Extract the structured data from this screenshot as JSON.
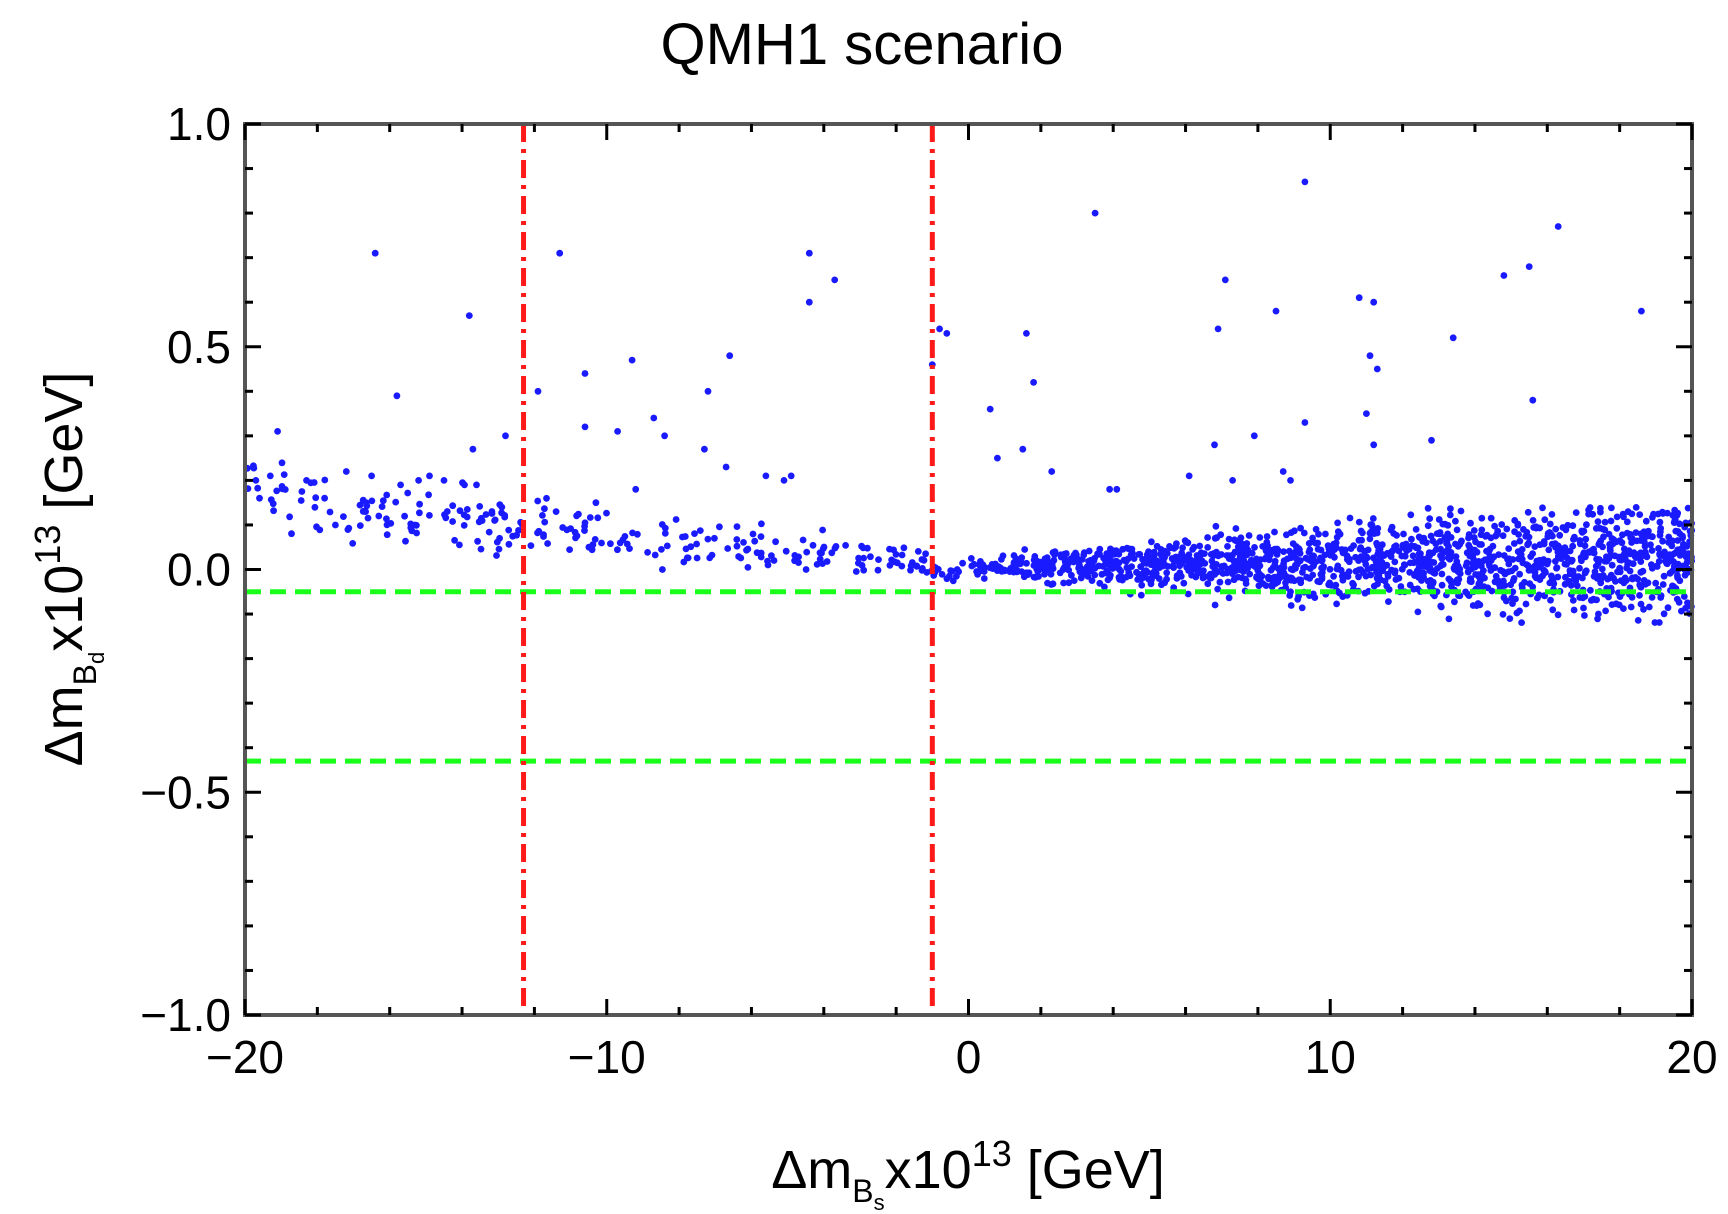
{
  "chart_data": {
    "type": "scatter",
    "title": "QMH1 scenario",
    "xlabel": {
      "prefix": "Δm",
      "subscript": "B",
      "subsubscript": "s",
      "mid": "x10",
      "superscript": "13",
      "suffix": " [GeV]"
    },
    "ylabel": {
      "prefix": "Δm",
      "subscript": "B",
      "subsubscript": "d",
      "mid": "x10",
      "superscript": "13",
      "suffix": " [GeV]"
    },
    "xlim": [
      -20,
      20
    ],
    "ylim": [
      -1.0,
      1.0
    ],
    "xticks": [
      -20,
      -10,
      0,
      10,
      20
    ],
    "xtick_labels": [
      "−20",
      "−10",
      "0",
      "10",
      "20"
    ],
    "yticks": [
      -1.0,
      -0.5,
      0.0,
      0.5,
      1.0
    ],
    "ytick_labels": [
      "−1.0",
      "−0.5",
      "0.0",
      "0.5",
      "1.0"
    ],
    "colors": {
      "points": "#1a1aff",
      "vlines": "#ff1a1a",
      "hlines": "#1aff1a",
      "frame": "#555555"
    },
    "vertical_lines": [
      -12.3,
      -1.0
    ],
    "horizontal_lines": [
      -0.05,
      -0.43
    ],
    "notable_points": [
      [
        9.3,
        0.87
      ],
      [
        3.5,
        0.8
      ],
      [
        16.3,
        0.77
      ],
      [
        -16.4,
        0.71
      ],
      [
        -11.3,
        0.71
      ],
      [
        -4.4,
        0.71
      ],
      [
        -4.4,
        0.6
      ],
      [
        -3.7,
        0.65
      ],
      [
        -13.8,
        0.57
      ],
      [
        7.1,
        0.65
      ],
      [
        14.8,
        0.66
      ],
      [
        15.5,
        0.68
      ],
      [
        10.8,
        0.61
      ],
      [
        11.2,
        0.6
      ],
      [
        8.5,
        0.58
      ],
      [
        18.6,
        0.58
      ],
      [
        -1.0,
        0.46
      ],
      [
        -0.8,
        0.54
      ],
      [
        -0.6,
        0.53
      ],
      [
        1.6,
        0.53
      ],
      [
        6.9,
        0.54
      ],
      [
        13.4,
        0.52
      ],
      [
        -15.8,
        0.39
      ],
      [
        -11.9,
        0.4
      ],
      [
        -10.6,
        0.44
      ],
      [
        -9.3,
        0.47
      ],
      [
        -6.6,
        0.48
      ],
      [
        -7.2,
        0.4
      ],
      [
        11.1,
        0.48
      ],
      [
        11.3,
        0.45
      ],
      [
        15.6,
        0.38
      ],
      [
        1.8,
        0.42
      ],
      [
        0.6,
        0.36
      ],
      [
        9.3,
        0.33
      ],
      [
        -19.1,
        0.31
      ],
      [
        -12.8,
        0.3
      ],
      [
        -10.6,
        0.32
      ],
      [
        -9.7,
        0.31
      ],
      [
        -8.7,
        0.34
      ],
      [
        -8.4,
        0.3
      ],
      [
        7.9,
        0.3
      ],
      [
        11.0,
        0.35
      ],
      [
        12.8,
        0.29
      ],
      [
        6.8,
        0.28
      ],
      [
        1.5,
        0.27
      ],
      [
        11.2,
        0.28
      ],
      [
        -13.7,
        0.27
      ],
      [
        -7.3,
        0.27
      ],
      [
        0.8,
        0.25
      ],
      [
        -19.7,
        0.2
      ],
      [
        -19.3,
        0.21
      ],
      [
        -19.6,
        0.16
      ],
      [
        -17.8,
        0.16
      ],
      [
        -18.3,
        0.2
      ],
      [
        -17.2,
        0.22
      ],
      [
        -16.5,
        0.21
      ],
      [
        -15.7,
        0.19
      ],
      [
        -15.2,
        0.2
      ],
      [
        -14.9,
        0.21
      ],
      [
        -14.5,
        0.2
      ],
      [
        -13.6,
        0.19
      ],
      [
        -12.9,
        0.14
      ],
      [
        -11.4,
        0.13
      ],
      [
        -10.3,
        0.15
      ],
      [
        -9.2,
        0.18
      ],
      [
        -6.7,
        0.23
      ],
      [
        -5.6,
        0.21
      ],
      [
        -5.1,
        0.2
      ],
      [
        -4.9,
        0.21
      ],
      [
        4.1,
        0.18
      ],
      [
        7.3,
        0.2
      ],
      [
        8.7,
        0.22
      ],
      [
        6.1,
        0.21
      ],
      [
        8.9,
        0.2
      ],
      [
        2.3,
        0.22
      ],
      [
        3.9,
        0.18
      ],
      [
        -17.5,
        0.1
      ],
      [
        -16.3,
        0.12
      ],
      [
        -15.3,
        0.1
      ],
      [
        -13.1,
        0.11
      ]
    ],
    "dense_band": {
      "description_points": "main cluster rising from ~(-20, 0.18) to 0 near x=0, then fanning out between -0.08 and 0.13 toward x=20",
      "x_range": [
        -20,
        20
      ]
    }
  }
}
